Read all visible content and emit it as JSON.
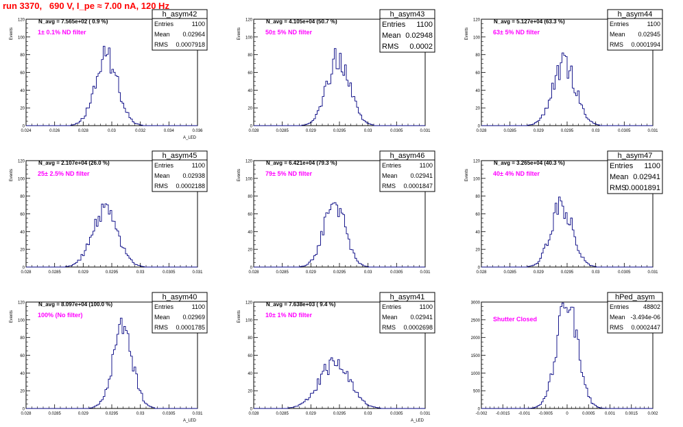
{
  "page_title": "run 3370,   690 V, I_pe ≈ 7.00 nA, 120 Hz",
  "colors": {
    "hist": "#000080",
    "annotation": "#ff00ff",
    "title": "#ff0000",
    "text": "#000000"
  },
  "chart_data": [
    {
      "type": "histogram",
      "name": "h_asym42",
      "ylabel": "Events",
      "xlabel": "A_LED",
      "navg": "N_avg = 7.565e+02 ( 0.9 %)",
      "filter": "1± 0.1% ND filter",
      "stats": {
        "entries_label": "Entries",
        "entries": "1100",
        "mean_label": "Mean",
        "mean": "0.02964",
        "rms_label": "RMS",
        "rms": "0.0007918"
      },
      "stats_style": "small",
      "xlim": [
        0.024,
        0.036
      ],
      "xticks": [
        "0.024",
        "0.026",
        "0.028",
        "0.03",
        "0.032",
        "0.034",
        "0.036"
      ],
      "ylim": [
        0,
        120
      ],
      "yticks": [
        "0",
        "20",
        "40",
        "60",
        "80",
        "100",
        "120"
      ],
      "mean": 0.02964,
      "sigma": 0.00079,
      "peak": 78
    },
    {
      "type": "histogram",
      "name": "h_asym43",
      "ylabel": "Events",
      "xlabel": "",
      "navg": "N_avg = 4.105e+04 (50.7 %)",
      "filter": "50± 5% ND filter",
      "stats": {
        "entries_label": "Entries",
        "entries": "1100",
        "mean_label": "Mean",
        "mean": "0.02948",
        "rms_label": "RMS",
        "rms": "0.0002"
      },
      "stats_style": "large",
      "xlim": [
        0.028,
        0.031
      ],
      "xticks": [
        "0.028",
        "0.0285",
        "0.029",
        "0.0295",
        "0.03",
        "0.0305",
        "0.031"
      ],
      "ylim": [
        0,
        120
      ],
      "yticks": [
        "0",
        "20",
        "40",
        "60",
        "80",
        "100",
        "120"
      ],
      "mean": 0.02948,
      "sigma": 0.0002,
      "peak": 76
    },
    {
      "type": "histogram",
      "name": "h_asym44",
      "ylabel": "Events",
      "xlabel": "",
      "navg": "N_avg = 5.127e+04 (63.3 %)",
      "filter": "63± 5% ND filter",
      "stats": {
        "entries_label": "Entries",
        "entries": "1100",
        "mean_label": "Mean",
        "mean": "0.02945",
        "rms_label": "RMS",
        "rms": "0.0001994"
      },
      "stats_style": "small",
      "xlim": [
        0.028,
        0.031
      ],
      "xticks": [
        "0.028",
        "0.0285",
        "0.029",
        "0.0295",
        "0.03",
        "0.0305",
        "0.031"
      ],
      "ylim": [
        0,
        120
      ],
      "yticks": [
        "0",
        "20",
        "40",
        "60",
        "80",
        "100",
        "120"
      ],
      "mean": 0.02945,
      "sigma": 0.0002,
      "peak": 70
    },
    {
      "type": "histogram",
      "name": "h_asym45",
      "ylabel": "Events",
      "xlabel": "",
      "navg": "N_avg = 2.107e+04 (26.0 %)",
      "filter": "25± 2.5% ND filter",
      "stats": {
        "entries_label": "Entries",
        "entries": "1100",
        "mean_label": "Mean",
        "mean": "0.02938",
        "rms_label": "RMS",
        "rms": "0.0002188"
      },
      "stats_style": "small",
      "xlim": [
        0.028,
        0.031
      ],
      "xticks": [
        "0.028",
        "0.0285",
        "0.029",
        "0.0295",
        "0.03",
        "0.0305",
        "0.031"
      ],
      "ylim": [
        0,
        120
      ],
      "yticks": [
        "0",
        "20",
        "40",
        "60",
        "80",
        "100",
        "120"
      ],
      "mean": 0.02938,
      "sigma": 0.00022,
      "peak": 65
    },
    {
      "type": "histogram",
      "name": "h_asym46",
      "ylabel": "Events",
      "xlabel": "",
      "navg": "N_avg = 6.421e+04 (79.3 %)",
      "filter": "79± 5% ND filter",
      "stats": {
        "entries_label": "Entries",
        "entries": "1100",
        "mean_label": "Mean",
        "mean": "0.02941",
        "rms_label": "RMS",
        "rms": "0.0001847"
      },
      "stats_style": "small",
      "xlim": [
        0.028,
        0.031
      ],
      "xticks": [
        "0.028",
        "0.0285",
        "0.029",
        "0.0295",
        "0.03",
        "0.0305",
        "0.031"
      ],
      "ylim": [
        0,
        120
      ],
      "yticks": [
        "0",
        "20",
        "40",
        "60",
        "80",
        "100",
        "120"
      ],
      "mean": 0.02941,
      "sigma": 0.000185,
      "peak": 75
    },
    {
      "type": "histogram",
      "name": "h_asym47",
      "ylabel": "Events",
      "xlabel": "",
      "navg": "N_avg = 3.265e+04 (40.3 %)",
      "filter": "40± 4% ND filter",
      "stats": {
        "entries_label": "Entries",
        "entries": "1100",
        "mean_label": "Mean",
        "mean": "0.02941",
        "rms_label": "RMS",
        "rms": "0.0001891"
      },
      "stats_style": "large",
      "xlim": [
        0.028,
        0.031
      ],
      "xticks": [
        "0.028",
        "0.0285",
        "0.029",
        "0.0295",
        "0.03",
        "0.0305",
        "0.031"
      ],
      "ylim": [
        0,
        120
      ],
      "yticks": [
        "0",
        "20",
        "40",
        "60",
        "80",
        "100",
        "120"
      ],
      "mean": 0.02941,
      "sigma": 0.00019,
      "peak": 70
    },
    {
      "type": "histogram",
      "name": "h_asym40",
      "ylabel": "Events",
      "xlabel": "A_LED",
      "navg": "N_avg = 8.097e+04 (100.0 %)",
      "filter": "100% (No filter)",
      "stats": {
        "entries_label": "Entries",
        "entries": "1100",
        "mean_label": "Mean",
        "mean": "0.02969",
        "rms_label": "RMS",
        "rms": "0.0001785"
      },
      "stats_style": "small",
      "xlim": [
        0.028,
        0.031
      ],
      "xticks": [
        "0.028",
        "0.0285",
        "0.029",
        "0.0295",
        "0.03",
        "0.0305",
        "0.031"
      ],
      "ylim": [
        0,
        120
      ],
      "yticks": [
        "0",
        "20",
        "40",
        "60",
        "80",
        "100",
        "120"
      ],
      "mean": 0.02969,
      "sigma": 0.000178,
      "peak": 87
    },
    {
      "type": "histogram",
      "name": "h_asym41",
      "ylabel": "Events",
      "xlabel": "A_LED",
      "navg": "N_avg = 7.638e+03 ( 9.4 %)",
      "filter": "10± 1% ND filter",
      "stats": {
        "entries_label": "Entries",
        "entries": "1100",
        "mean_label": "Mean",
        "mean": "0.02941",
        "rms_label": "RMS",
        "rms": "0.0002698"
      },
      "stats_style": "small",
      "xlim": [
        0.028,
        0.031
      ],
      "xticks": [
        "0.028",
        "0.0285",
        "0.029",
        "0.0295",
        "0.03",
        "0.0305",
        "0.031"
      ],
      "ylim": [
        0,
        120
      ],
      "yticks": [
        "0",
        "20",
        "40",
        "60",
        "80",
        "100",
        "120"
      ],
      "mean": 0.02941,
      "sigma": 0.00027,
      "peak": 50
    },
    {
      "type": "histogram",
      "name": "hPed_asym",
      "ylabel": "",
      "xlabel": "",
      "navg": "",
      "filter": "Shutter Closed",
      "stats": {
        "entries_label": "Entries",
        "entries": "48802",
        "mean_label": "Mean",
        "mean": "-3.494e-06",
        "rms_label": "RMS",
        "rms": "0.0002447"
      },
      "stats_style": "small",
      "xlim": [
        -0.002,
        0.002
      ],
      "xticks": [
        "-0.002",
        "-0.0015",
        "-0.001",
        "-0.0005",
        "0",
        "0.0005",
        "0.001",
        "0.0015",
        "0.002"
      ],
      "ylim": [
        0,
        3000
      ],
      "yticks": [
        "0",
        "500",
        "1000",
        "1500",
        "2000",
        "2500",
        "3000"
      ],
      "mean": 0.0,
      "sigma": 0.000245,
      "peak": 2920
    }
  ]
}
